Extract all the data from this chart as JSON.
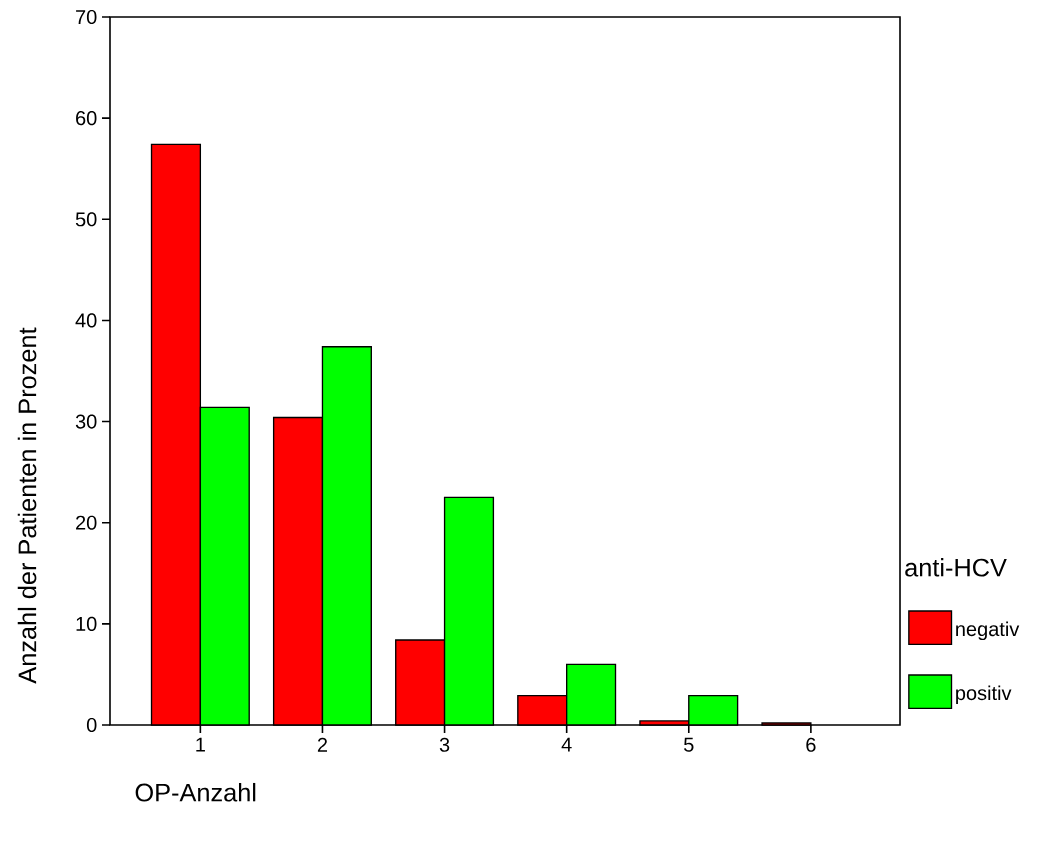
{
  "chart_data": {
    "type": "bar",
    "xlabel": "OP-Anzahl",
    "ylabel": "Anzahl der Patienten in Prozent",
    "legend_title": "anti-HCV",
    "categories": [
      "1",
      "2",
      "3",
      "4",
      "5",
      "6"
    ],
    "series": [
      {
        "name": "negativ",
        "color": "#ff0000",
        "values": [
          57.4,
          30.4,
          8.4,
          2.9,
          0.4,
          0.2
        ]
      },
      {
        "name": "positiv",
        "color": "#00ff00",
        "values": [
          31.4,
          37.4,
          22.5,
          6.0,
          2.9,
          null
        ]
      }
    ],
    "ylim": [
      0,
      70
    ],
    "yticks": [
      0,
      10,
      20,
      30,
      40,
      50,
      60,
      70
    ],
    "grid": false,
    "legend": "right"
  }
}
